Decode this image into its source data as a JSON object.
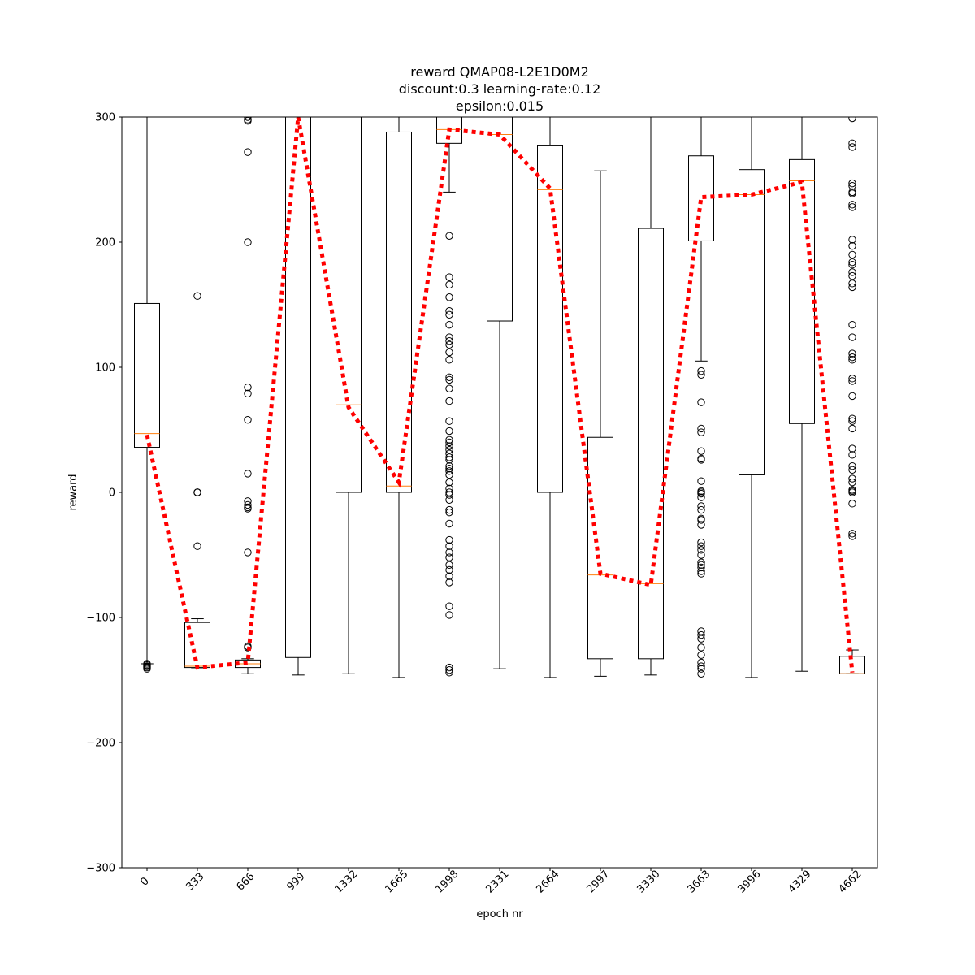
{
  "chart_data": {
    "type": "box",
    "title_lines": [
      "reward QMAP08-L2E1D0M2",
      "discount:0.3 learning-rate:0.12",
      "epsilon:0.015"
    ],
    "xlabel": "epoch nr",
    "ylabel": "reward",
    "ylim": [
      -300,
      300
    ],
    "yticks": [
      -300,
      -200,
      -100,
      0,
      100,
      200,
      300
    ],
    "categories": [
      "0",
      "333",
      "666",
      "999",
      "1332",
      "1665",
      "1998",
      "2331",
      "2664",
      "2997",
      "3330",
      "3663",
      "3996",
      "4329",
      "4662"
    ],
    "boxes": [
      {
        "q1": 36,
        "median": 47,
        "q3": 151,
        "whisker_low": -137,
        "whisker_high": 300,
        "fliers": [
          -137,
          -138,
          -139,
          -140,
          -141
        ]
      },
      {
        "q1": -140,
        "median": -139,
        "q3": -104,
        "whisker_low": -141,
        "whisker_high": -101,
        "fliers": [
          157,
          0,
          0,
          0,
          -43
        ]
      },
      {
        "q1": -140,
        "median": -137,
        "q3": -134,
        "whisker_low": -145,
        "whisker_high": -133,
        "fliers": [
          300,
          298,
          297,
          272,
          200,
          84,
          79,
          58,
          15,
          -7,
          -10,
          -12,
          -13,
          -48,
          -123,
          -124,
          -124
        ]
      },
      {
        "q1": -132,
        "median": 300,
        "q3": 300,
        "whisker_low": -146,
        "whisker_high": 300,
        "fliers": []
      },
      {
        "q1": 0,
        "median": 70,
        "q3": 300,
        "whisker_low": -145,
        "whisker_high": 300,
        "fliers": []
      },
      {
        "q1": 0,
        "median": 5,
        "q3": 288,
        "whisker_low": -148,
        "whisker_high": 300,
        "fliers": []
      },
      {
        "q1": 279,
        "median": 290,
        "q3": 300,
        "whisker_low": 240,
        "whisker_high": 300,
        "fliers": [
          205,
          172,
          166,
          156,
          145,
          142,
          134,
          124,
          121,
          118,
          112,
          106,
          92,
          90,
          83,
          73,
          57,
          49,
          42,
          40,
          37,
          34,
          31,
          28,
          26,
          21,
          19,
          17,
          14,
          8,
          3,
          0,
          -2,
          -6,
          -14,
          -16,
          -25,
          -38,
          -43,
          -48,
          -52,
          -58,
          -62,
          -67,
          -72,
          -91,
          -98,
          -140,
          -142,
          -144
        ]
      },
      {
        "q1": 137,
        "median": 286,
        "q3": 300,
        "whisker_low": -141,
        "whisker_high": 300,
        "fliers": []
      },
      {
        "q1": 0,
        "median": 242,
        "q3": 277,
        "whisker_low": -148,
        "whisker_high": 300,
        "fliers": []
      },
      {
        "q1": -133,
        "median": -66,
        "q3": 44,
        "whisker_low": -147,
        "whisker_high": 257,
        "fliers": []
      },
      {
        "q1": -133,
        "median": -73,
        "q3": 211,
        "whisker_low": -146,
        "whisker_high": 300,
        "fliers": []
      },
      {
        "q1": 201,
        "median": 236,
        "q3": 269,
        "whisker_low": 105,
        "whisker_high": 300,
        "fliers": [
          97,
          94,
          72,
          51,
          48,
          33,
          27,
          26,
          9,
          1,
          0,
          -1,
          -4,
          -11,
          -14,
          -21,
          -22,
          -26,
          -40,
          -43,
          -46,
          -50,
          -56,
          -58,
          -60,
          -63,
          -65,
          -111,
          -114,
          -117,
          -124,
          -130,
          -136,
          -139,
          -141,
          -145
        ]
      },
      {
        "q1": 14,
        "median": 238,
        "q3": 258,
        "whisker_low": -148,
        "whisker_high": 300,
        "fliers": []
      },
      {
        "q1": 55,
        "median": 249,
        "q3": 266,
        "whisker_low": -143,
        "whisker_high": 300,
        "fliers": []
      },
      {
        "q1": -145,
        "median": -145,
        "q3": -131,
        "whisker_low": -145,
        "whisker_high": -126,
        "fliers": [
          299,
          279,
          276,
          247,
          245,
          240,
          239,
          230,
          228,
          202,
          197,
          190,
          184,
          182,
          176,
          173,
          167,
          164,
          134,
          124,
          111,
          108,
          106,
          91,
          89,
          77,
          59,
          57,
          51,
          35,
          30,
          21,
          18,
          11,
          8,
          2,
          1,
          0,
          -9,
          -33,
          -35
        ]
      }
    ],
    "mean_line": {
      "color": "#ff0000",
      "style": "dotted",
      "values": [
        46,
        -140,
        -136,
        300,
        68,
        8,
        290,
        286,
        243,
        -65,
        -74,
        236,
        238,
        248,
        -144
      ]
    },
    "colors": {
      "median": "#ff7f0e",
      "box": "#000000",
      "mean_line": "#ff0000"
    },
    "grid": false,
    "legend": "none"
  }
}
